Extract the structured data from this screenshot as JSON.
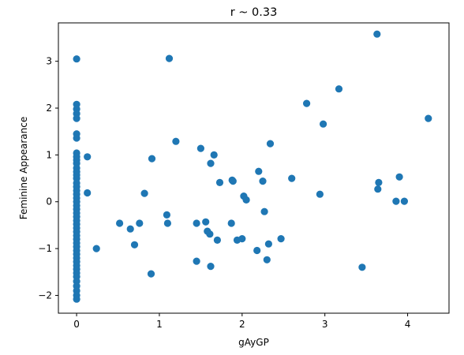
{
  "chart_data": {
    "type": "scatter",
    "title": "r ~ 0.33",
    "xlabel": "gAyGP",
    "ylabel": "Feminine Appearance",
    "xlim": [
      -0.22,
      4.5
    ],
    "ylim": [
      -2.38,
      3.82
    ],
    "xticks": [
      0,
      1,
      2,
      3,
      4
    ],
    "yticks": [
      -2,
      -1,
      0,
      1,
      2,
      3
    ],
    "grid": false,
    "marker_color": "#1f77b4",
    "points": [
      [
        0,
        3.05
      ],
      [
        0,
        2.08
      ],
      [
        0,
        1.98
      ],
      [
        0,
        1.88
      ],
      [
        0,
        1.78
      ],
      [
        0,
        1.45
      ],
      [
        0,
        1.36
      ],
      [
        0,
        1.04
      ],
      [
        0,
        0.96
      ],
      [
        0,
        0.89
      ],
      [
        0,
        0.82
      ],
      [
        0,
        0.72
      ],
      [
        0,
        0.64
      ],
      [
        0,
        0.57
      ],
      [
        0,
        0.5
      ],
      [
        0,
        0.4
      ],
      [
        0,
        0.32
      ],
      [
        0,
        0.24
      ],
      [
        0,
        0.16
      ],
      [
        0,
        0.08
      ],
      [
        0,
        0.0
      ],
      [
        0,
        -0.08
      ],
      [
        0,
        -0.16
      ],
      [
        0,
        -0.24
      ],
      [
        0,
        -0.32
      ],
      [
        0,
        -0.4
      ],
      [
        0,
        -0.48
      ],
      [
        0,
        -0.56
      ],
      [
        0,
        -0.64
      ],
      [
        0,
        -0.72
      ],
      [
        0,
        -0.8
      ],
      [
        0,
        -0.88
      ],
      [
        0,
        -0.96
      ],
      [
        0,
        -1.04
      ],
      [
        0,
        -1.12
      ],
      [
        0,
        -1.2
      ],
      [
        0,
        -1.28
      ],
      [
        0,
        -1.36
      ],
      [
        0,
        -1.44
      ],
      [
        0,
        -1.52
      ],
      [
        0,
        -1.6
      ],
      [
        0,
        -1.7
      ],
      [
        0,
        -1.8
      ],
      [
        0,
        -1.9
      ],
      [
        0,
        -2.0
      ],
      [
        0,
        -2.08
      ],
      [
        0.13,
        0.96
      ],
      [
        0.13,
        0.19
      ],
      [
        0.24,
        -1.0
      ],
      [
        0.52,
        -0.46
      ],
      [
        0.65,
        -0.58
      ],
      [
        0.7,
        -0.92
      ],
      [
        0.76,
        -0.46
      ],
      [
        0.82,
        0.18
      ],
      [
        0.9,
        -1.54
      ],
      [
        0.91,
        0.92
      ],
      [
        1.09,
        -0.28
      ],
      [
        1.1,
        -0.46
      ],
      [
        1.12,
        3.06
      ],
      [
        1.2,
        1.29
      ],
      [
        1.45,
        -0.46
      ],
      [
        1.45,
        -1.27
      ],
      [
        1.5,
        1.14
      ],
      [
        1.56,
        -0.43
      ],
      [
        1.58,
        -0.63
      ],
      [
        1.61,
        -0.69
      ],
      [
        1.62,
        0.82
      ],
      [
        1.62,
        -1.38
      ],
      [
        1.66,
        1.0
      ],
      [
        1.7,
        -0.82
      ],
      [
        1.73,
        0.41
      ],
      [
        1.87,
        -0.46
      ],
      [
        1.88,
        0.46
      ],
      [
        1.89,
        0.44
      ],
      [
        1.94,
        -0.82
      ],
      [
        2.0,
        -0.79
      ],
      [
        2.02,
        0.12
      ],
      [
        2.05,
        0.04
      ],
      [
        2.18,
        -1.04
      ],
      [
        2.2,
        0.65
      ],
      [
        2.25,
        0.44
      ],
      [
        2.27,
        -0.21
      ],
      [
        2.3,
        -1.24
      ],
      [
        2.32,
        -0.9
      ],
      [
        2.34,
        1.24
      ],
      [
        2.47,
        -0.79
      ],
      [
        2.6,
        0.5
      ],
      [
        2.78,
        2.1
      ],
      [
        2.94,
        0.16
      ],
      [
        2.98,
        1.66
      ],
      [
        3.17,
        2.41
      ],
      [
        3.45,
        -1.4
      ],
      [
        3.63,
        3.58
      ],
      [
        3.64,
        0.27
      ],
      [
        3.65,
        0.41
      ],
      [
        3.86,
        0.01
      ],
      [
        3.9,
        0.53
      ],
      [
        3.96,
        0.01
      ],
      [
        4.25,
        1.78
      ]
    ]
  }
}
